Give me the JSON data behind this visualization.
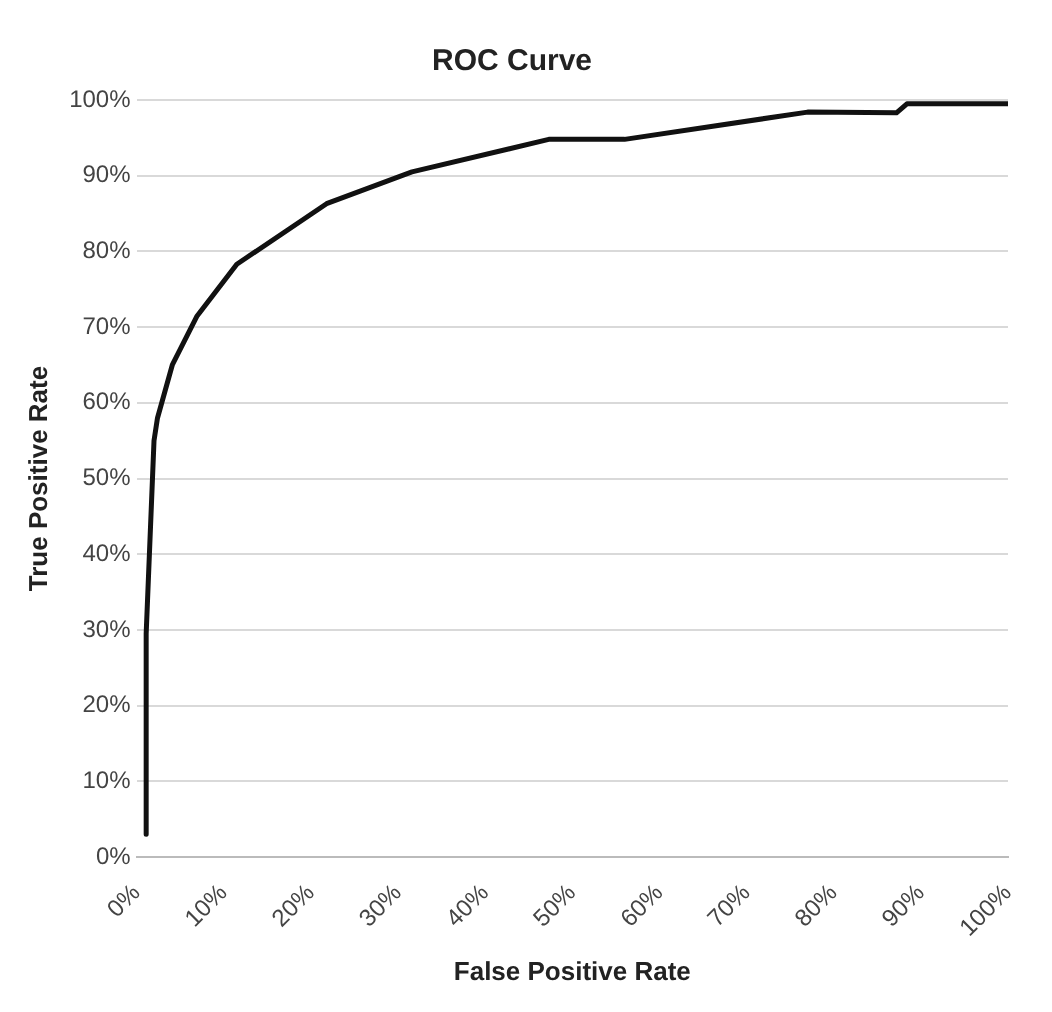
{
  "chart_data": {
    "type": "line",
    "title": "ROC Curve",
    "xlabel": "False Positive Rate",
    "ylabel": "True Positive Rate",
    "x": [
      1.1,
      1.1,
      2,
      2.4,
      4.1,
      6.9,
      11.5,
      21.8,
      31.6,
      47.3,
      56,
      77,
      87.2,
      88.4,
      100
    ],
    "series": [
      {
        "color": "#111111",
        "values": [
          3,
          29.5,
          55,
          58,
          65,
          71.4,
          78.3,
          86.3,
          90.5,
          94.8,
          94.8,
          98.4,
          98.3,
          99.5,
          99.5
        ]
      }
    ],
    "xlim": [
      0,
      100
    ],
    "ylim": [
      0,
      100
    ],
    "xticks": [
      {
        "value": 0,
        "label": "0%"
      },
      {
        "value": 10,
        "label": "10%"
      },
      {
        "value": 20,
        "label": "20%"
      },
      {
        "value": 30,
        "label": "30%"
      },
      {
        "value": 40,
        "label": "40%"
      },
      {
        "value": 50,
        "label": "50%"
      },
      {
        "value": 60,
        "label": "60%"
      },
      {
        "value": 70,
        "label": "70%"
      },
      {
        "value": 80,
        "label": "80%"
      },
      {
        "value": 90,
        "label": "90%"
      },
      {
        "value": 100,
        "label": "100%"
      }
    ],
    "yticks": [
      {
        "value": 0,
        "label": "0%"
      },
      {
        "value": 10,
        "label": "10%"
      },
      {
        "value": 20,
        "label": "20%"
      },
      {
        "value": 30,
        "label": "30%"
      },
      {
        "value": 40,
        "label": "40%"
      },
      {
        "value": 50,
        "label": "50%"
      },
      {
        "value": 60,
        "label": "60%"
      },
      {
        "value": 70,
        "label": "70%"
      },
      {
        "value": 80,
        "label": "80%"
      },
      {
        "value": 90,
        "label": "90%"
      },
      {
        "value": 100,
        "label": "100%"
      }
    ],
    "grid": "y",
    "marker": "none",
    "line_style": "solid",
    "legend": false
  }
}
